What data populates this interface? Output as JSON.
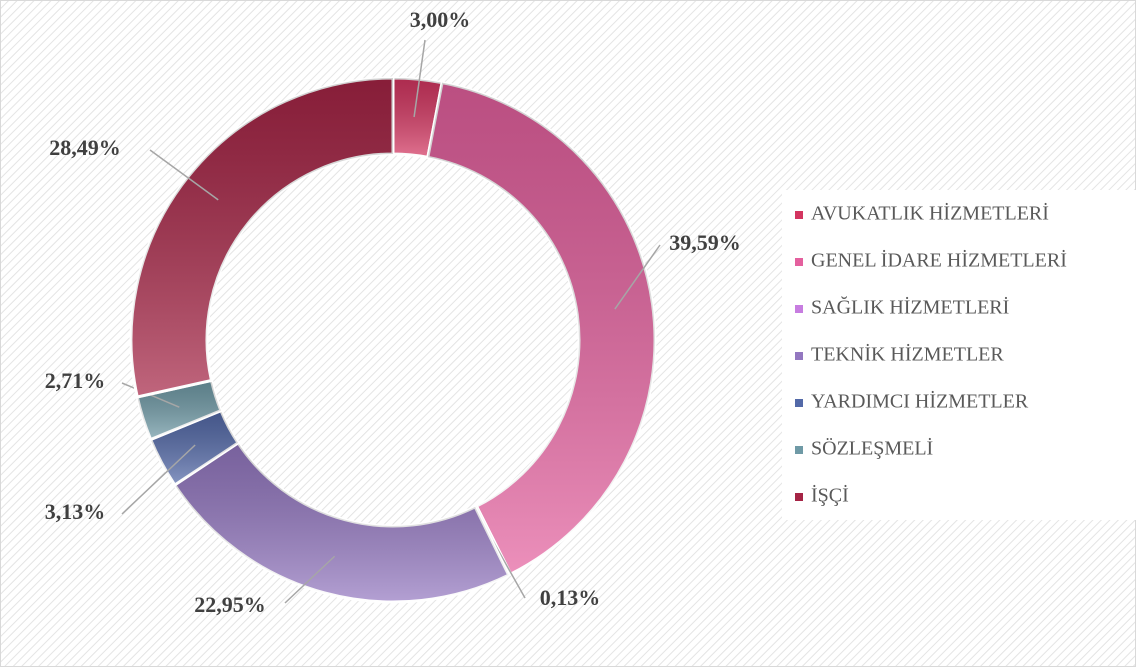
{
  "chart_data": {
    "type": "donut",
    "categories": [
      "AVUKATLIK HİZMETLERİ",
      "GENEL İDARE HİZMETLERİ",
      "SAĞLIK HİZMETLERİ",
      "TEKNİK HİZMETLER",
      "YARDIMCI HİZMETLER",
      "SÖZLEŞMELİ",
      "İŞÇİ"
    ],
    "values": [
      3.0,
      39.59,
      0.13,
      22.95,
      3.13,
      2.71,
      28.49
    ],
    "value_labels": [
      "3,00%",
      "39,59%",
      "0,13%",
      "22,95%",
      "3,13%",
      "2,71%",
      "28,49%"
    ],
    "colors": [
      "#d33560",
      "#e4609e",
      "#c77de0",
      "#9377c0",
      "#5369a8",
      "#6f9aa6",
      "#a52445"
    ],
    "legend": "right"
  }
}
